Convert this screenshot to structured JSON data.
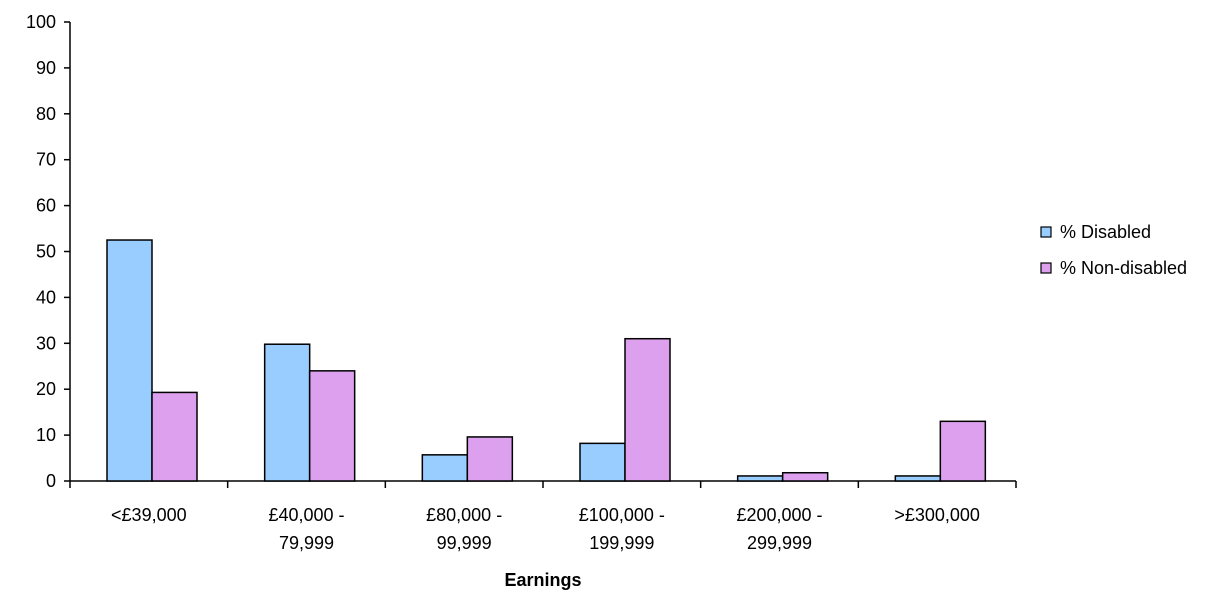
{
  "chart_data": {
    "type": "bar",
    "categories": [
      [
        "<£39,000"
      ],
      [
        "£40,000 -",
        "79,999"
      ],
      [
        "£80,000 -",
        "99,999"
      ],
      [
        "£100,000 -",
        "199,999"
      ],
      [
        "£200,000 -",
        "299,999"
      ],
      [
        ">£300,000"
      ]
    ],
    "series": [
      {
        "name": "% Disabled",
        "color": "#99CCFF",
        "values": [
          52.5,
          29.8,
          5.7,
          8.2,
          1.1,
          1.1
        ]
      },
      {
        "name": "% Non-disabled",
        "color": "#DDA0EE",
        "values": [
          19.3,
          24.0,
          9.6,
          31.0,
          1.8,
          13.0
        ]
      }
    ],
    "xlabel": "Earnings",
    "ylabel": "",
    "ylim": [
      0,
      100
    ],
    "yticks": [
      "0",
      "10",
      "20",
      "30",
      "40",
      "50",
      "60",
      "70",
      "80",
      "90",
      "100"
    ],
    "grid": false,
    "legend_position": "right"
  }
}
